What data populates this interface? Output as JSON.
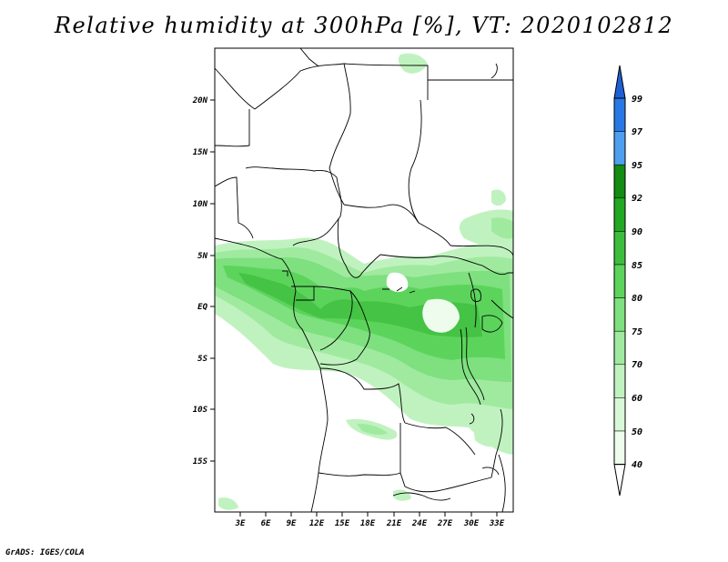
{
  "title": "Relative humidity at 300hPa [%], VT: 2020102812",
  "credit": "GrADS: IGES/COLA",
  "map": {
    "lat_labels": [
      "20N",
      "15N",
      "10N",
      "5N",
      "EQ",
      "5S",
      "10S",
      "15S"
    ],
    "lon_labels": [
      "3E",
      "6E",
      "9E",
      "12E",
      "15E",
      "18E",
      "21E",
      "24E",
      "27E",
      "30E",
      "33E"
    ]
  },
  "colorbar": {
    "levels": [
      "99",
      "97",
      "95",
      "92",
      "90",
      "85",
      "80",
      "75",
      "70",
      "60",
      "50",
      "40"
    ],
    "colors": [
      "#1f5fd6",
      "#2a78e6",
      "#4e9ff0",
      "#128c12",
      "#22a822",
      "#3cbe3c",
      "#5cd45c",
      "#7ee07e",
      "#a0eaa0",
      "#c0f2c0",
      "#d8f8d8",
      "#eefcee"
    ]
  }
}
